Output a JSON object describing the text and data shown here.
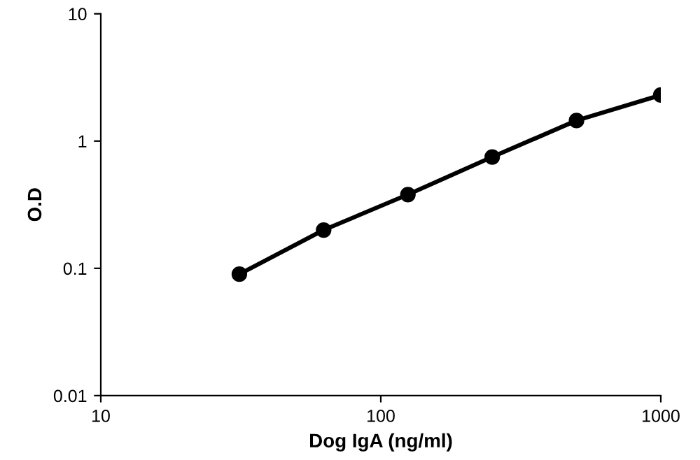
{
  "chart_data": {
    "type": "line",
    "xlabel": "Dog IgA (ng/ml)",
    "ylabel": "O.D",
    "x": [
      31.25,
      62.5,
      125,
      250,
      500,
      1000
    ],
    "series": [
      {
        "color": "#000000",
        "values": [
          0.09,
          0.2,
          0.38,
          0.75,
          1.45,
          2.3
        ]
      }
    ],
    "log": "xy",
    "xlim": [
      10,
      1000
    ],
    "ylim": [
      0.01,
      10
    ],
    "xticks": [
      10,
      100,
      1000
    ],
    "yticks": [
      0.01,
      0.1,
      1,
      10
    ],
    "marker": "circle",
    "line_style": "solid",
    "grid": false,
    "legend": false
  }
}
